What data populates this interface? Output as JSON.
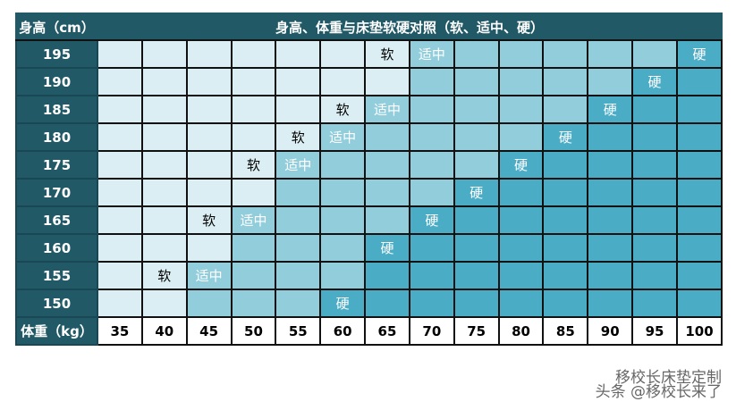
{
  "header": {
    "height_label": "身高（cm）",
    "title": "身高、体重与床垫软硬对照（软、适中、硬）"
  },
  "footer": {
    "weight_label": "体重（kg）",
    "weights": [
      "35",
      "40",
      "45",
      "50",
      "55",
      "60",
      "65",
      "70",
      "75",
      "80",
      "85",
      "90",
      "95",
      "100"
    ]
  },
  "colors": {
    "header": "#215967",
    "soft": "#daeef3",
    "medium": "#92cddc",
    "hard": "#4bacc6"
  },
  "labels": {
    "soft": "软",
    "medium": "适中",
    "hard": "硬"
  },
  "rows": [
    {
      "height": "195",
      "levels": "lllllllmmmmmmd",
      "marks": {
        "6": "soft",
        "7": "medium",
        "13": "hard"
      }
    },
    {
      "height": "190",
      "levels": "lllllllmmmmmdd",
      "marks": {
        "12": "hard"
      }
    },
    {
      "height": "185",
      "levels": "llllllmmmmmddd",
      "marks": {
        "5": "soft",
        "6": "medium",
        "11": "hard"
      }
    },
    {
      "height": "180",
      "levels": "lllllmmmmmdddd",
      "marks": {
        "4": "soft",
        "5": "medium",
        "10": "hard"
      }
    },
    {
      "height": "175",
      "levels": "llllmmmmmddddd",
      "marks": {
        "3": "soft",
        "4": "medium",
        "9": "hard"
      }
    },
    {
      "height": "170",
      "levels": "llllmmmmdddddd",
      "marks": {
        "8": "hard"
      }
    },
    {
      "height": "165",
      "levels": "lllmmmmddddddd",
      "marks": {
        "2": "soft",
        "3": "medium",
        "7": "hard"
      }
    },
    {
      "height": "160",
      "levels": "lllmmmdddddddd",
      "marks": {
        "6": "hard"
      }
    },
    {
      "height": "155",
      "levels": "llmmmmdddddddd",
      "marks": {
        "1": "soft",
        "2": "medium"
      }
    },
    {
      "height": "150",
      "levels": "llmmmddddddddd",
      "marks": {
        "5": "hard"
      }
    }
  ],
  "watermark": {
    "line1": "移校长床垫定制",
    "line2": "头条 @移校长来了"
  }
}
